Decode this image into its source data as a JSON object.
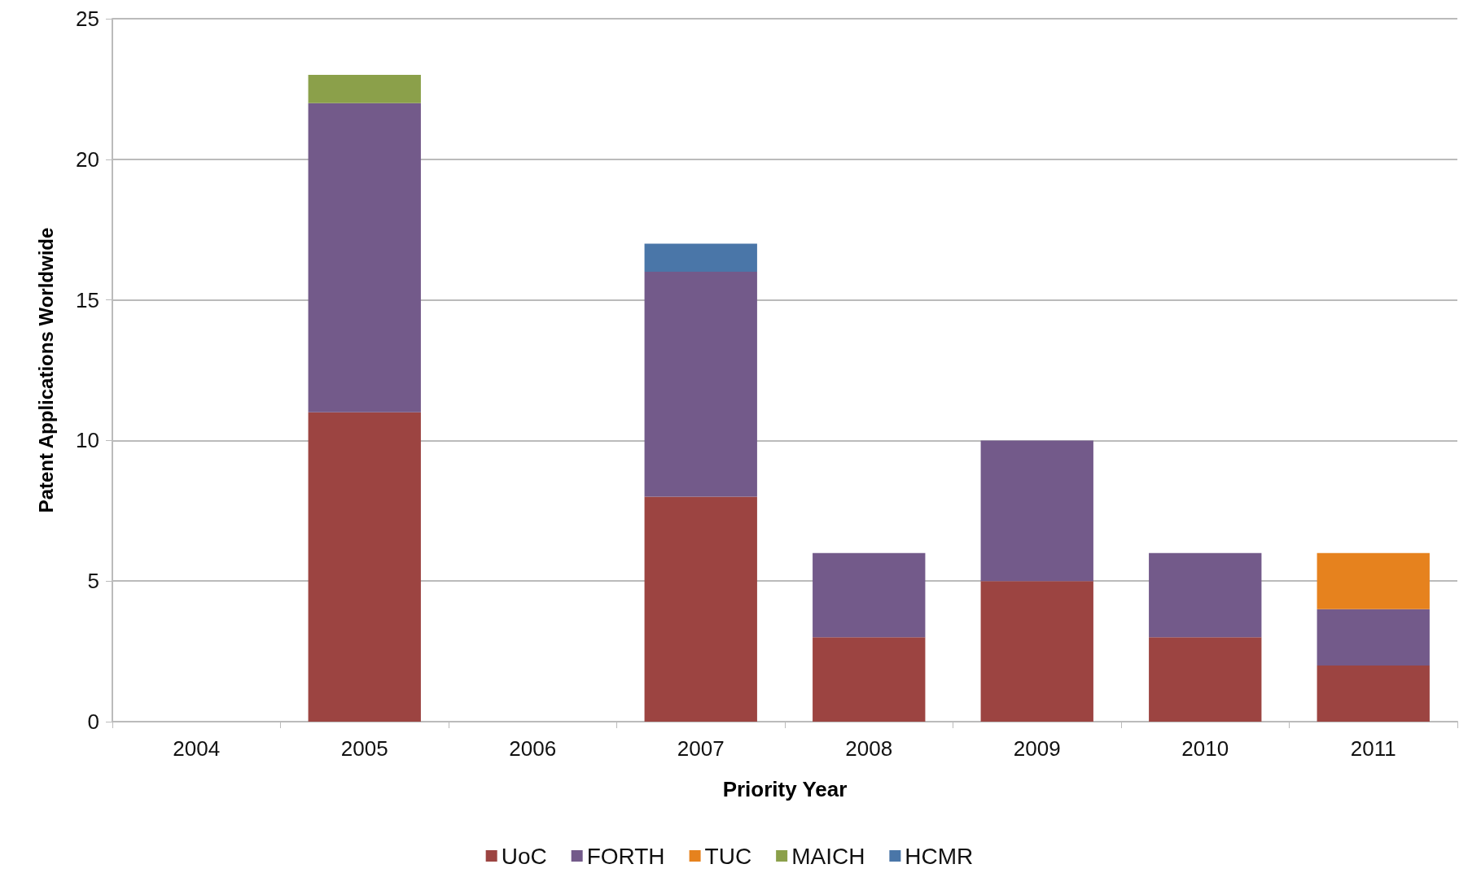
{
  "chart_data": {
    "type": "bar",
    "xlabel": "Priority Year",
    "ylabel": "Patent Applications Worldwide",
    "categories": [
      "2004",
      "2005",
      "2006",
      "2007",
      "2008",
      "2009",
      "2010",
      "2011"
    ],
    "series": [
      {
        "name": "UoC",
        "color": "#9c4441",
        "values": [
          0,
          11,
          0,
          8,
          3,
          5,
          3,
          2
        ]
      },
      {
        "name": "FORTH",
        "color": "#735a8a",
        "values": [
          0,
          11,
          0,
          8,
          3,
          5,
          3,
          2
        ]
      },
      {
        "name": "TUC",
        "color": "#e6821e",
        "values": [
          0,
          0,
          0,
          0,
          0,
          0,
          0,
          2
        ]
      },
      {
        "name": "MAICH",
        "color": "#8ba04a",
        "values": [
          0,
          1,
          0,
          0,
          0,
          0,
          0,
          0
        ]
      },
      {
        "name": "HCMR",
        "color": "#4a76a8",
        "values": [
          0,
          0,
          0,
          1,
          0,
          0,
          0,
          0
        ]
      }
    ],
    "stacked": true,
    "ylim": [
      0,
      25
    ],
    "yticks": [
      0,
      5,
      10,
      15,
      20,
      25
    ],
    "grid": "y",
    "legend": "bottom"
  }
}
